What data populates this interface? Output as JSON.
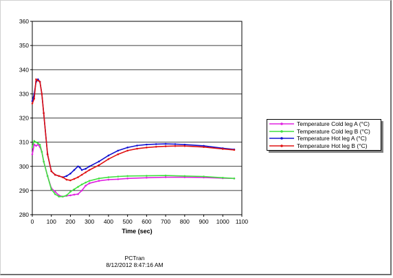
{
  "footer": {
    "line1": "PCTran",
    "line2": "8/12/2012 8:47:16 AM"
  },
  "chart_data": {
    "type": "line",
    "title": "",
    "xlabel": "Time (sec)",
    "ylabel": "",
    "xlim": [
      0,
      1100
    ],
    "ylim": [
      280,
      360
    ],
    "xticks": [
      0,
      100,
      200,
      300,
      400,
      500,
      600,
      700,
      800,
      900,
      1000,
      1100
    ],
    "yticks": [
      280,
      290,
      300,
      310,
      320,
      330,
      340,
      350,
      360
    ],
    "grid": "horizontal",
    "legend_position": "right",
    "series": [
      {
        "name": "Temperature Cold leg A (°C)",
        "color": "#e020e0",
        "x": [
          0,
          10,
          20,
          30,
          40,
          50,
          60,
          80,
          100,
          120,
          140,
          160,
          180,
          200,
          220,
          240,
          260,
          280,
          300,
          350,
          400,
          450,
          500,
          600,
          700,
          800,
          900,
          1000,
          1060
        ],
        "values": [
          305,
          309,
          308.5,
          309,
          308,
          306,
          302,
          296,
          291,
          289.5,
          288,
          287.5,
          287.8,
          288,
          288.3,
          288.5,
          290,
          292,
          293,
          294,
          294.5,
          294.7,
          295,
          295.3,
          295.5,
          295.5,
          295.4,
          295.1,
          295
        ]
      },
      {
        "name": "Temperature Cold leg B (°C)",
        "color": "#40e040",
        "x": [
          0,
          10,
          20,
          30,
          40,
          50,
          60,
          80,
          100,
          120,
          140,
          160,
          180,
          200,
          220,
          240,
          260,
          280,
          300,
          350,
          400,
          450,
          500,
          600,
          700,
          800,
          900,
          1000,
          1060
        ],
        "values": [
          308,
          310.5,
          310,
          309.5,
          309,
          306,
          302,
          296,
          290.5,
          288.5,
          287.5,
          287.5,
          288,
          289.5,
          290.5,
          291.5,
          292.5,
          293.3,
          294,
          295,
          295.5,
          295.8,
          296,
          296.1,
          296.2,
          296,
          295.8,
          295.3,
          295
        ]
      },
      {
        "name": "Temperature Hot leg A (°C)",
        "color": "#1010d0",
        "x": [
          0,
          10,
          20,
          30,
          40,
          50,
          60,
          80,
          100,
          120,
          140,
          160,
          180,
          200,
          220,
          240,
          250,
          260,
          280,
          300,
          350,
          400,
          450,
          500,
          550,
          600,
          650,
          700,
          750,
          800,
          900,
          1000,
          1060
        ],
        "values": [
          327,
          330,
          335,
          336,
          335,
          330,
          322,
          305,
          298,
          296.5,
          296,
          295.5,
          296,
          297,
          298.5,
          300,
          299.5,
          298.5,
          299,
          300,
          302,
          304.5,
          306.5,
          307.8,
          308.6,
          309,
          309.2,
          309.3,
          309.2,
          309,
          308.5,
          307.5,
          307
        ]
      },
      {
        "name": "Temperature Hot leg B (°C)",
        "color": "#e01010",
        "x": [
          0,
          10,
          20,
          30,
          40,
          50,
          60,
          80,
          100,
          120,
          140,
          160,
          180,
          200,
          220,
          240,
          260,
          280,
          300,
          350,
          400,
          450,
          500,
          550,
          600,
          650,
          700,
          750,
          800,
          900,
          1000,
          1060
        ],
        "values": [
          326,
          328,
          336,
          335.5,
          335,
          330,
          322,
          305,
          298,
          296.5,
          296,
          295.5,
          294.5,
          294.2,
          294.8,
          295.5,
          296.5,
          297.5,
          298.5,
          300.5,
          303,
          305,
          306.5,
          307.3,
          307.8,
          308.1,
          308.3,
          308.4,
          308.4,
          308,
          307.2,
          306.8
        ]
      }
    ]
  }
}
